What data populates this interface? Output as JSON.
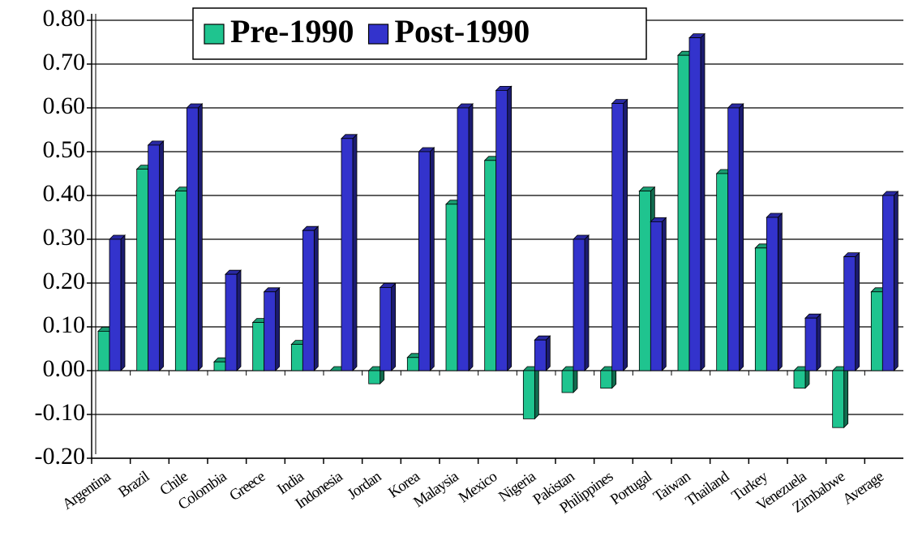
{
  "chart_data": {
    "type": "bar",
    "categories": [
      "Argentina",
      "Brazil",
      "Chile",
      "Colombia",
      "Greece",
      "India",
      "Indonesia",
      "Jordan",
      "Korea",
      "Malaysia",
      "Mexico",
      "Nigeria",
      "Pakistan",
      "Philippines",
      "Portugal",
      "Taiwan",
      "Thailand",
      "Turkey",
      "Venezuela",
      "Zimbabwe",
      "Average"
    ],
    "series": [
      {
        "name": "Pre-1990",
        "color": "#1fc48f",
        "values": [
          0.09,
          0.46,
          0.41,
          0.02,
          0.11,
          0.06,
          0,
          -0.03,
          0.03,
          0.38,
          0.48,
          -0.11,
          -0.05,
          -0.04,
          0.41,
          0.72,
          0.45,
          0.28,
          -0.04,
          -0.13,
          0.18
        ]
      },
      {
        "name": "Post-1990",
        "color": "#3333cc",
        "values": [
          0.3,
          0.515,
          0.6,
          0.22,
          0.18,
          0.32,
          0.53,
          0.19,
          0.5,
          0.6,
          0.64,
          0.07,
          0.3,
          0.61,
          0.34,
          0.76,
          0.6,
          0.35,
          0.12,
          0.26,
          0.4
        ]
      }
    ],
    "ylim": [
      -0.2,
      0.8
    ],
    "yticks": [
      {
        "value": -0.2,
        "label": "-0.20"
      },
      {
        "value": -0.1,
        "label": "-0.10"
      },
      {
        "value": 0,
        "label": "0.00"
      },
      {
        "value": 0.1,
        "label": "0.10"
      },
      {
        "value": 0.2,
        "label": "0.20"
      },
      {
        "value": 0.3,
        "label": "0.30"
      },
      {
        "value": 0.4,
        "label": "0.40"
      },
      {
        "value": 0.5,
        "label": "0.50"
      },
      {
        "value": 0.6,
        "label": "0.60"
      },
      {
        "value": 0.7,
        "label": "0.70"
      },
      {
        "value": 0.8,
        "label": "0.80"
      }
    ],
    "grid": true,
    "legend": "top"
  }
}
